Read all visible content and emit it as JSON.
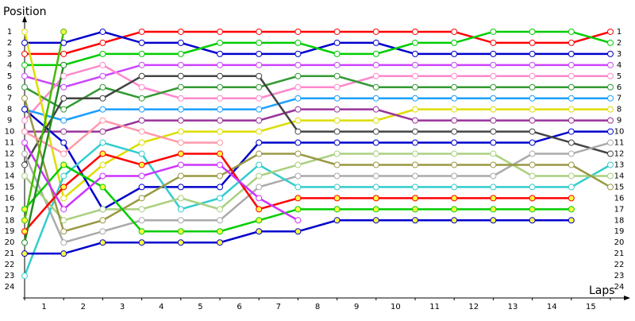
{
  "chart_data": {
    "type": "line",
    "y_label": "Position",
    "x_label": "Laps",
    "xlim": [
      0,
      15
    ],
    "ylim": [
      25,
      0
    ],
    "xticks": [
      {
        "value": 0.5,
        "label": "1"
      },
      {
        "value": 1.5,
        "label": "2"
      },
      {
        "value": 2.5,
        "label": "3"
      },
      {
        "value": 3.5,
        "label": "4"
      },
      {
        "value": 4.5,
        "label": "5"
      },
      {
        "value": 5.5,
        "label": "6"
      },
      {
        "value": 6.5,
        "label": "7"
      },
      {
        "value": 7.5,
        "label": "8"
      },
      {
        "value": 8.5,
        "label": "9"
      },
      {
        "value": 9.5,
        "label": "10"
      },
      {
        "value": 10.5,
        "label": "11"
      },
      {
        "value": 11.5,
        "label": "12"
      },
      {
        "value": 12.5,
        "label": "13"
      },
      {
        "value": 13.5,
        "label": "14"
      },
      {
        "value": 14.5,
        "label": "15"
      }
    ],
    "yticks": [
      1,
      2,
      3,
      4,
      5,
      6,
      7,
      8,
      9,
      10,
      11,
      12,
      13,
      14,
      15,
      16,
      17,
      18,
      19,
      20,
      21,
      22,
      23,
      24
    ],
    "x": [
      0,
      1,
      2,
      3,
      4,
      5,
      6,
      7,
      8,
      9,
      10,
      11,
      12,
      13,
      14,
      15
    ],
    "series": [
      {
        "color": "#ff0000",
        "marker_fill": "#ffffff",
        "values": [
          3,
          3,
          2,
          1,
          1,
          1,
          1,
          1,
          1,
          1,
          1,
          1,
          2,
          2,
          2,
          1
        ]
      },
      {
        "color": "#0000cc",
        "marker_fill": "#ffffff",
        "values": [
          2,
          2,
          1,
          2,
          2,
          3,
          3,
          3,
          2,
          2,
          3,
          3,
          3,
          3,
          3,
          3
        ]
      },
      {
        "color": "#00cc00",
        "marker_fill": "#ffffff",
        "values": [
          4,
          4,
          3,
          3,
          3,
          2,
          2,
          2,
          3,
          3,
          2,
          2,
          1,
          1,
          1,
          2
        ]
      },
      {
        "color": "#cc44ff",
        "marker_fill": "#ffffff",
        "values": [
          5,
          6,
          5,
          4,
          4,
          4,
          4,
          4,
          4,
          4,
          4,
          4,
          4,
          4,
          4,
          4
        ]
      },
      {
        "color": "#ff88cc",
        "marker_fill": "#ffffff",
        "values": [
          9,
          5,
          4,
          6,
          7,
          7,
          7,
          6,
          6,
          5,
          5,
          5,
          5,
          5,
          5,
          5
        ]
      },
      {
        "color": "#339933",
        "marker_fill": "#ffffff",
        "values": [
          6,
          8,
          6,
          7,
          6,
          6,
          6,
          5,
          5,
          6,
          6,
          6,
          6,
          6,
          6,
          6
        ]
      },
      {
        "color": "#1a9fff",
        "marker_fill": "#ffffff",
        "values": [
          8,
          9,
          8,
          8,
          8,
          8,
          8,
          7,
          7,
          7,
          7,
          7,
          7,
          7,
          7,
          7
        ]
      },
      {
        "color": "#dddd00",
        "marker_fill": "#ffffff",
        "values": [
          1,
          16,
          13,
          11,
          10,
          10,
          10,
          9,
          9,
          9,
          8,
          8,
          8,
          8,
          8,
          8
        ]
      },
      {
        "color": "#993399",
        "marker_fill": "#ffffff",
        "values": [
          10,
          10,
          10,
          9,
          9,
          9,
          9,
          8,
          8,
          8,
          9,
          9,
          9,
          9,
          9,
          9
        ]
      },
      {
        "color": "#0000cc",
        "marker_fill": "#ffffff",
        "values": [
          8,
          11,
          17,
          15,
          15,
          15,
          11,
          11,
          11,
          11,
          11,
          11,
          11,
          11,
          10,
          10
        ]
      },
      {
        "color": "#444444",
        "marker_fill": "#ffffff",
        "values": [
          13,
          7,
          7,
          5,
          5,
          5,
          5,
          10,
          10,
          10,
          10,
          10,
          10,
          10,
          11,
          12
        ]
      },
      {
        "color": "#aaaaaa",
        "marker_fill": "#ffffff",
        "values": [
          12,
          20,
          19,
          18,
          18,
          18,
          15,
          14,
          14,
          14,
          14,
          14,
          14,
          12,
          12,
          11
        ]
      },
      {
        "color": "#33cccc",
        "marker_fill": "#ffffff",
        "values": [
          23,
          14,
          11,
          12,
          17,
          16,
          13,
          15,
          15,
          15,
          15,
          15,
          15,
          15,
          15,
          13
        ]
      },
      {
        "color": "#aad080",
        "marker_fill": "#ffffff",
        "values": [
          14,
          18,
          17,
          17,
          16,
          17,
          14,
          13,
          12,
          12,
          12,
          12,
          12,
          14,
          14,
          14
        ]
      },
      {
        "color": "#999944",
        "marker_fill": "#ffffff",
        "values": [
          7,
          19,
          18,
          16,
          14,
          14,
          12,
          12,
          13,
          13,
          13,
          13,
          13,
          13,
          13,
          15
        ]
      },
      {
        "color": "#ff0000",
        "marker_fill": "#ffff44",
        "values": [
          19,
          15,
          12,
          13,
          12,
          12,
          17,
          16,
          16,
          16,
          16,
          16,
          16,
          16,
          16,
          null
        ]
      },
      {
        "color": "#00cc00",
        "marker_fill": "#ffff44",
        "values": [
          17,
          13,
          15,
          19,
          19,
          19,
          18,
          17,
          17,
          17,
          17,
          17,
          17,
          17,
          17,
          null
        ]
      },
      {
        "color": "#0000cc",
        "marker_fill": "#ffff44",
        "values": [
          21,
          21,
          20,
          20,
          20,
          20,
          19,
          19,
          18,
          18,
          18,
          18,
          18,
          18,
          18,
          null
        ]
      },
      {
        "color": "#ff99aa",
        "marker_fill": "#ffffff",
        "values": [
          10,
          12,
          9,
          10,
          11,
          11,
          null,
          null,
          null,
          null,
          null,
          null,
          null,
          null,
          null,
          null
        ]
      },
      {
        "color": "#cc33ff",
        "marker_fill": "#ffffff",
        "values": [
          11,
          17,
          14,
          14,
          13,
          13,
          16,
          18,
          null,
          null,
          null,
          null,
          null,
          null,
          null,
          null
        ]
      },
      {
        "color": "#44bb00",
        "marker_fill": "#ffff44",
        "values": [
          18,
          1,
          null,
          null,
          null,
          null,
          null,
          null,
          null,
          null,
          null,
          null,
          null,
          null,
          null,
          null
        ]
      },
      {
        "color": "#228b22",
        "marker_fill": "#ffffff",
        "values": [
          20,
          4,
          null,
          null,
          null,
          null,
          null,
          null,
          null,
          null,
          null,
          null,
          null,
          null,
          null,
          null
        ]
      }
    ]
  }
}
